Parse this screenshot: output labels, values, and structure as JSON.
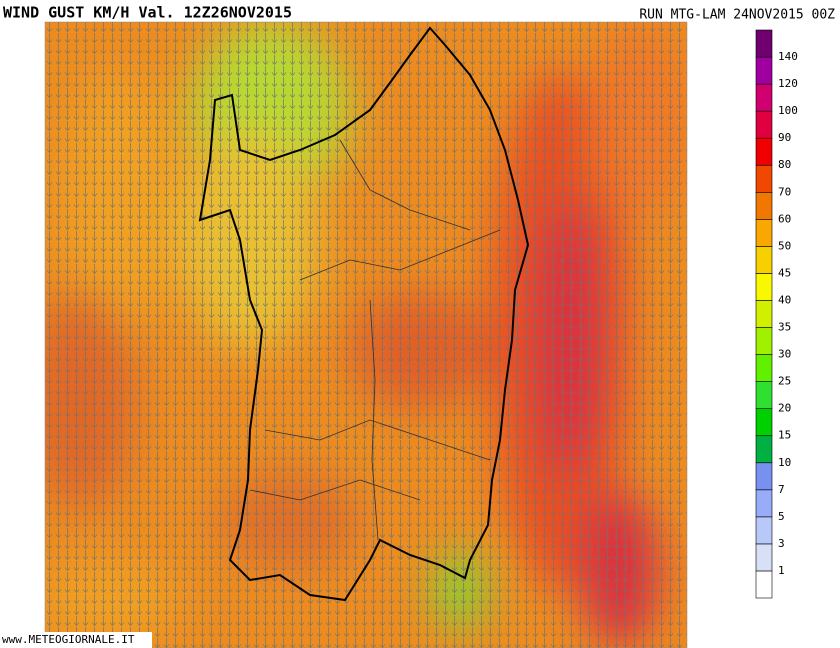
{
  "header": {
    "title": "WIND GUST KM/H Val. 12Z26NOV2015",
    "run": "RUN MTG-LAM 24NOV2015 00Z"
  },
  "legend": {
    "labels": [
      1,
      3,
      5,
      7,
      10,
      15,
      20,
      25,
      30,
      35,
      40,
      45,
      50,
      60,
      70,
      80,
      90,
      100,
      120,
      140
    ],
    "colors": [
      "#ffffff",
      "#d8e0f8",
      "#b8c8f8",
      "#98acf8",
      "#7890f0",
      "#00b040",
      "#00d000",
      "#30e030",
      "#60f000",
      "#a0f000",
      "#d0f000",
      "#f8f800",
      "#f8d000",
      "#f8a800",
      "#f07800",
      "#f04800",
      "#f00000",
      "#e00040",
      "#d00070",
      "#a000a0",
      "#700070"
    ]
  },
  "footer": {
    "source": "www.METEOGIORNALE.IT"
  }
}
